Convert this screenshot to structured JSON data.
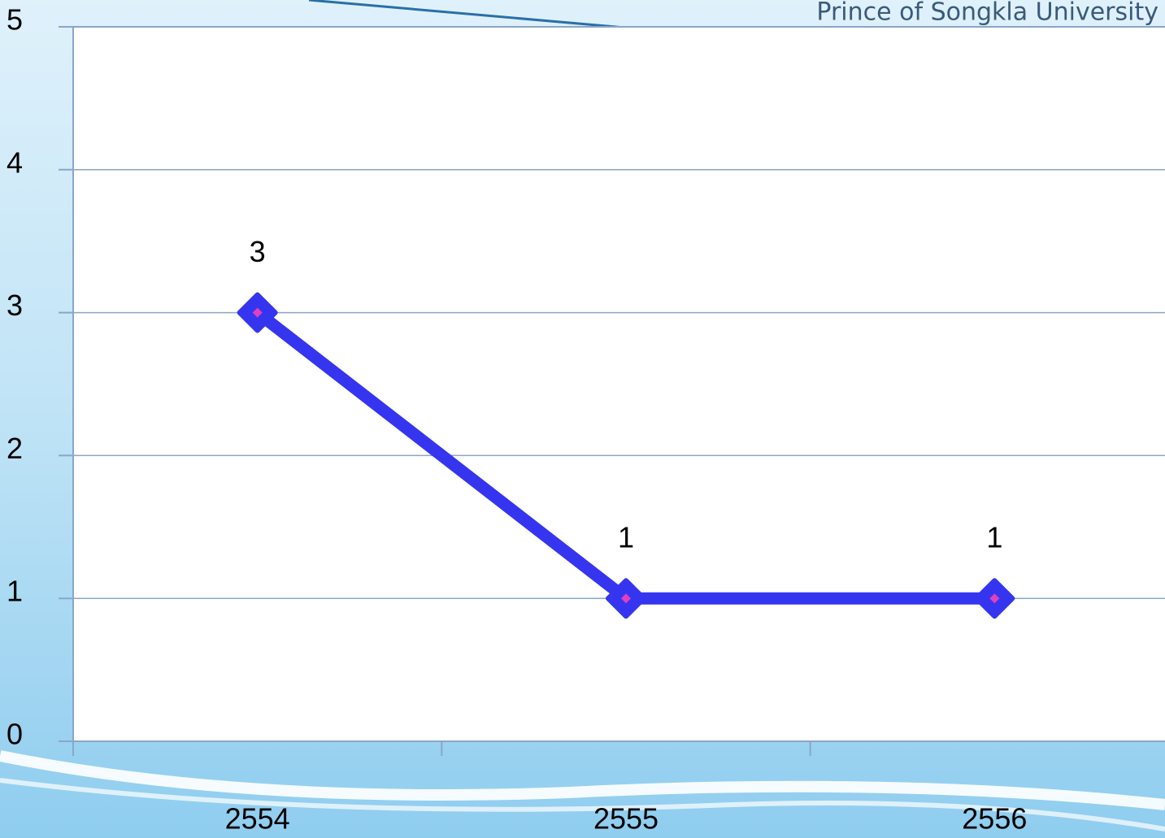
{
  "slide": {
    "brand": "Prince of Songkla University"
  },
  "chart_data": {
    "type": "line",
    "categories": [
      "2554",
      "2555",
      "2556"
    ],
    "series": [
      {
        "color": "#3535f0",
        "marker_fill": "#e040c0",
        "values": [
          3,
          1,
          1
        ]
      }
    ],
    "ylim": [
      0,
      5
    ],
    "yticks": [
      0,
      1,
      2,
      3,
      4,
      5
    ],
    "grid": true,
    "data_labels": true
  }
}
